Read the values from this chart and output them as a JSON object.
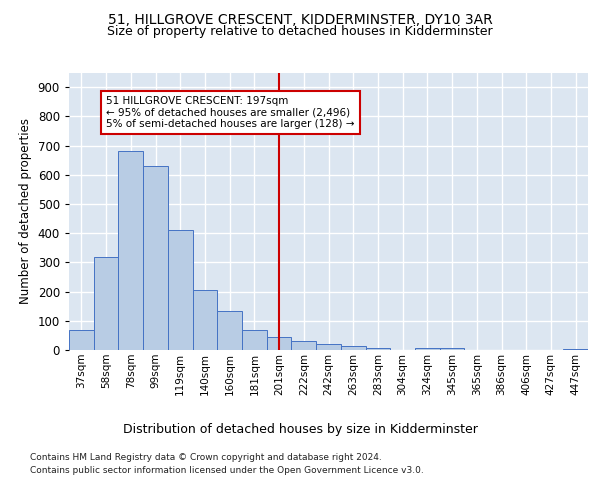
{
  "title1": "51, HILLGROVE CRESCENT, KIDDERMINSTER, DY10 3AR",
  "title2": "Size of property relative to detached houses in Kidderminster",
  "xlabel": "Distribution of detached houses by size in Kidderminster",
  "ylabel": "Number of detached properties",
  "categories": [
    "37sqm",
    "58sqm",
    "78sqm",
    "99sqm",
    "119sqm",
    "140sqm",
    "160sqm",
    "181sqm",
    "201sqm",
    "222sqm",
    "242sqm",
    "263sqm",
    "283sqm",
    "304sqm",
    "324sqm",
    "345sqm",
    "365sqm",
    "386sqm",
    "406sqm",
    "427sqm",
    "447sqm"
  ],
  "values": [
    70,
    320,
    680,
    630,
    410,
    205,
    135,
    68,
    45,
    32,
    20,
    12,
    8,
    0,
    7,
    8,
    0,
    0,
    0,
    0,
    5
  ],
  "bar_color": "#b8cce4",
  "bar_edge_color": "#4472c4",
  "background_color": "#dce6f1",
  "grid_color": "#ffffff",
  "vline_x_idx": 8,
  "annotation_title": "51 HILLGROVE CRESCENT: 197sqm",
  "annotation_line1": "← 95% of detached houses are smaller (2,496)",
  "annotation_line2": "5% of semi-detached houses are larger (128) →",
  "annotation_box_color": "#ffffff",
  "annotation_box_edge": "#cc0000",
  "vline_color": "#cc0000",
  "footer1": "Contains HM Land Registry data © Crown copyright and database right 2024.",
  "footer2": "Contains public sector information licensed under the Open Government Licence v3.0.",
  "ylim": [
    0,
    950
  ],
  "yticks": [
    0,
    100,
    200,
    300,
    400,
    500,
    600,
    700,
    800,
    900
  ]
}
